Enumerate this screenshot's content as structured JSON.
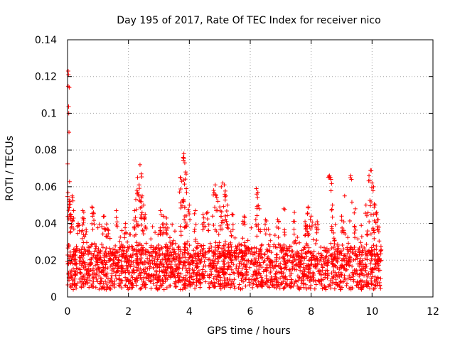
{
  "chart_data": {
    "type": "scatter",
    "title": "Day 195 of 2017, Rate Of TEC Index for receiver nico",
    "xlabel": "GPS time / hours",
    "ylabel": "ROTI / TECUs",
    "xlim": [
      0,
      12
    ],
    "ylim": [
      0,
      0.14
    ],
    "xticks": [
      0,
      2,
      4,
      6,
      8,
      10,
      12
    ],
    "yticks": [
      0,
      0.02,
      0.04,
      0.06,
      0.08,
      0.1,
      0.12,
      0.14
    ],
    "xtick_labels": [
      "0",
      "2",
      "4",
      "6",
      "8",
      "10",
      "12"
    ],
    "ytick_labels": [
      "0",
      "0.02",
      "0.04",
      "0.06",
      "0.08",
      "0.1",
      "0.12",
      "0.14"
    ],
    "grid": true,
    "marker": "+",
    "color": "#ff0000",
    "series": [
      {
        "name": "ROTI",
        "points": [
          [
            0.02,
            0.123
          ],
          [
            0.03,
            0.121
          ],
          [
            0.04,
            0.1
          ],
          [
            0.05,
            0.053
          ],
          [
            0.08,
            0.052
          ],
          [
            0.1,
            0.045
          ],
          [
            0.15,
            0.055
          ],
          [
            0.2,
            0.047
          ],
          [
            0.35,
            0.04
          ],
          [
            0.5,
            0.043
          ],
          [
            0.5,
            0.047
          ],
          [
            0.8,
            0.049
          ],
          [
            0.85,
            0.046
          ],
          [
            1.2,
            0.044
          ],
          [
            1.3,
            0.037
          ],
          [
            1.6,
            0.047
          ],
          [
            1.9,
            0.04
          ],
          [
            2.2,
            0.047
          ],
          [
            2.28,
            0.058
          ],
          [
            2.3,
            0.065
          ],
          [
            2.35,
            0.061
          ],
          [
            2.38,
            0.072
          ],
          [
            2.42,
            0.067
          ],
          [
            2.45,
            0.055
          ],
          [
            2.5,
            0.05
          ],
          [
            2.55,
            0.045
          ],
          [
            3.05,
            0.047
          ],
          [
            3.15,
            0.044
          ],
          [
            3.25,
            0.043
          ],
          [
            3.7,
            0.065
          ],
          [
            3.75,
            0.063
          ],
          [
            3.8,
            0.076
          ],
          [
            3.82,
            0.078
          ],
          [
            3.85,
            0.073
          ],
          [
            3.88,
            0.068
          ],
          [
            3.9,
            0.059
          ],
          [
            4.0,
            0.05
          ],
          [
            4.2,
            0.047
          ],
          [
            4.45,
            0.045
          ],
          [
            4.6,
            0.046
          ],
          [
            4.8,
            0.058
          ],
          [
            4.85,
            0.061
          ],
          [
            4.9,
            0.054
          ],
          [
            5.0,
            0.049
          ],
          [
            5.05,
            0.06
          ],
          [
            5.1,
            0.062
          ],
          [
            5.15,
            0.061
          ],
          [
            5.2,
            0.055
          ],
          [
            5.25,
            0.05
          ],
          [
            5.4,
            0.045
          ],
          [
            5.8,
            0.044
          ],
          [
            6.2,
            0.059
          ],
          [
            6.25,
            0.057
          ],
          [
            6.3,
            0.048
          ],
          [
            6.5,
            0.042
          ],
          [
            6.9,
            0.042
          ],
          [
            7.1,
            0.048
          ],
          [
            7.45,
            0.046
          ],
          [
            7.8,
            0.041
          ],
          [
            7.9,
            0.049
          ],
          [
            8.0,
            0.044
          ],
          [
            8.2,
            0.041
          ],
          [
            8.6,
            0.066
          ],
          [
            8.65,
            0.064
          ],
          [
            8.7,
            0.05
          ],
          [
            9.0,
            0.044
          ],
          [
            9.1,
            0.055
          ],
          [
            9.3,
            0.066
          ],
          [
            9.45,
            0.048
          ],
          [
            9.8,
            0.05
          ],
          [
            9.9,
            0.066
          ],
          [
            9.95,
            0.069
          ],
          [
            10.0,
            0.062
          ],
          [
            10.05,
            0.06
          ],
          [
            10.1,
            0.05
          ],
          [
            10.15,
            0.046
          ],
          [
            10.2,
            0.042
          ]
        ],
        "background_band": {
          "description": "dense cloud of points spanning the observation window",
          "x_range": [
            0,
            10.3
          ],
          "typical_range": [
            0.006,
            0.032
          ],
          "median": 0.016
        },
        "observation_window_hours": [
          0,
          10.3
        ]
      }
    ]
  }
}
